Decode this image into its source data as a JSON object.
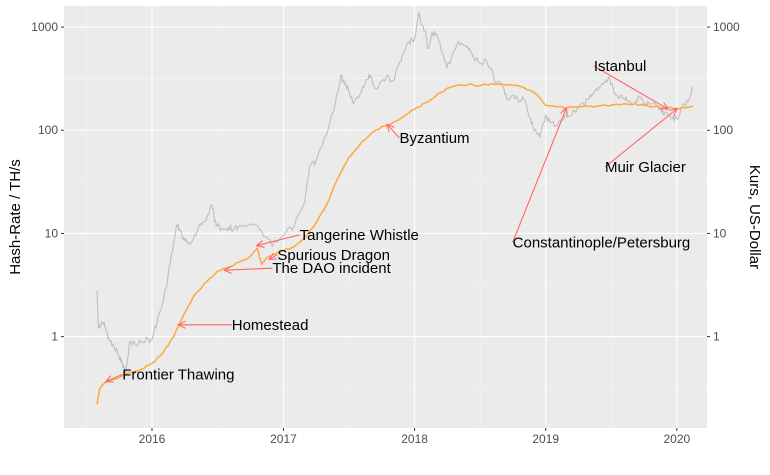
{
  "chart_data": {
    "type": "line",
    "title": "",
    "ylabel_left": "Hash-Rate / TH/s",
    "ylabel_right": "Kurs, US-Dollar",
    "xlabel": "",
    "y_scale": "log10",
    "ylim": [
      0.13,
      1600
    ],
    "xlim": [
      "2015-05-01",
      "2020-03-25"
    ],
    "grid": true,
    "legend": "none",
    "y_ticks": [
      {
        "value": 1,
        "label": "1"
      },
      {
        "value": 10,
        "label": "10"
      },
      {
        "value": 100,
        "label": "100"
      },
      {
        "value": 1000,
        "label": "1000"
      }
    ],
    "x_ticks": [
      {
        "value": "2016-01-01",
        "label": "2016"
      },
      {
        "value": "2017-01-01",
        "label": "2017"
      },
      {
        "value": "2018-01-01",
        "label": "2018"
      },
      {
        "value": "2019-01-01",
        "label": "2019"
      },
      {
        "value": "2020-01-01",
        "label": "2020"
      }
    ],
    "series": [
      {
        "color": "#ffa83d",
        "points": [
          [
            "2015-08-01",
            0.22
          ],
          [
            "2015-08-07",
            0.3
          ],
          [
            "2015-08-15",
            0.34
          ],
          [
            "2015-08-25",
            0.36
          ],
          [
            "2015-09-10",
            0.38
          ],
          [
            "2015-10-01",
            0.4
          ],
          [
            "2015-11-01",
            0.45
          ],
          [
            "2015-12-01",
            0.48
          ],
          [
            "2016-01-01",
            0.55
          ],
          [
            "2016-02-01",
            0.7
          ],
          [
            "2016-03-01",
            1.0
          ],
          [
            "2016-04-01",
            1.7
          ],
          [
            "2016-05-01",
            2.6
          ],
          [
            "2016-06-01",
            3.4
          ],
          [
            "2016-07-01",
            4.3
          ],
          [
            "2016-08-01",
            4.7
          ],
          [
            "2016-09-01",
            5.3
          ],
          [
            "2016-10-01",
            6.0
          ],
          [
            "2016-10-20",
            7.2
          ],
          [
            "2016-11-01",
            5.0
          ],
          [
            "2016-11-15",
            5.8
          ],
          [
            "2016-12-01",
            6.2
          ],
          [
            "2017-01-01",
            6.8
          ],
          [
            "2017-02-01",
            7.5
          ],
          [
            "2017-03-01",
            9.0
          ],
          [
            "2017-04-01",
            12.5
          ],
          [
            "2017-05-01",
            19
          ],
          [
            "2017-06-01",
            34
          ],
          [
            "2017-07-01",
            54
          ],
          [
            "2017-08-01",
            72
          ],
          [
            "2017-09-01",
            92
          ],
          [
            "2017-10-01",
            108
          ],
          [
            "2017-11-01",
            118
          ],
          [
            "2017-12-01",
            135
          ],
          [
            "2018-01-01",
            160
          ],
          [
            "2018-02-01",
            185
          ],
          [
            "2018-03-01",
            215
          ],
          [
            "2018-04-01",
            255
          ],
          [
            "2018-05-01",
            275
          ],
          [
            "2018-06-01",
            278
          ],
          [
            "2018-07-01",
            270
          ],
          [
            "2018-08-01",
            282
          ],
          [
            "2018-09-01",
            280
          ],
          [
            "2018-10-01",
            272
          ],
          [
            "2018-11-01",
            260
          ],
          [
            "2018-12-01",
            230
          ],
          [
            "2019-01-01",
            175
          ],
          [
            "2019-02-01",
            168
          ],
          [
            "2019-03-01",
            165
          ],
          [
            "2019-04-01",
            168
          ],
          [
            "2019-05-01",
            170
          ],
          [
            "2019-06-01",
            172
          ],
          [
            "2019-07-01",
            175
          ],
          [
            "2019-08-01",
            178
          ],
          [
            "2019-09-01",
            178
          ],
          [
            "2019-10-01",
            175
          ],
          [
            "2019-11-01",
            170
          ],
          [
            "2019-12-01",
            165
          ],
          [
            "2020-01-01",
            162
          ],
          [
            "2020-02-01",
            168
          ],
          [
            "2020-02-15",
            170
          ]
        ]
      },
      {
        "color": "#bebebe",
        "points": [
          [
            "2015-08-01",
            2.8
          ],
          [
            "2015-08-05",
            1.2
          ],
          [
            "2015-08-15",
            1.4
          ],
          [
            "2015-08-25",
            1.2
          ],
          [
            "2015-09-05",
            0.9
          ],
          [
            "2015-09-15",
            0.85
          ],
          [
            "2015-10-01",
            0.65
          ],
          [
            "2015-10-10",
            0.55
          ],
          [
            "2015-10-20",
            0.45
          ],
          [
            "2015-11-01",
            0.9
          ],
          [
            "2015-11-15",
            0.85
          ],
          [
            "2015-12-01",
            0.88
          ],
          [
            "2015-12-20",
            0.95
          ],
          [
            "2016-01-01",
            0.93
          ],
          [
            "2016-01-15",
            1.4
          ],
          [
            "2016-02-01",
            2.2
          ],
          [
            "2016-02-15",
            4.0
          ],
          [
            "2016-03-01",
            8.0
          ],
          [
            "2016-03-10",
            12
          ],
          [
            "2016-03-20",
            10.5
          ],
          [
            "2016-04-01",
            8.5
          ],
          [
            "2016-04-15",
            8.0
          ],
          [
            "2016-05-01",
            9.5
          ],
          [
            "2016-05-15",
            12.5
          ],
          [
            "2016-06-01",
            14
          ],
          [
            "2016-06-15",
            19
          ],
          [
            "2016-06-25",
            13
          ],
          [
            "2016-07-01",
            12
          ],
          [
            "2016-07-15",
            11
          ],
          [
            "2016-08-01",
            11.5
          ],
          [
            "2016-08-15",
            11
          ],
          [
            "2016-09-01",
            12
          ],
          [
            "2016-10-01",
            12.3
          ],
          [
            "2016-11-01",
            10.5
          ],
          [
            "2016-12-01",
            7.5
          ],
          [
            "2017-01-01",
            9.5
          ],
          [
            "2017-02-01",
            12
          ],
          [
            "2017-03-01",
            20
          ],
          [
            "2017-03-15",
            45
          ],
          [
            "2017-04-01",
            50
          ],
          [
            "2017-05-01",
            90
          ],
          [
            "2017-05-25",
            180
          ],
          [
            "2017-06-10",
            340
          ],
          [
            "2017-06-20",
            280
          ],
          [
            "2017-07-01",
            250
          ],
          [
            "2017-07-15",
            180
          ],
          [
            "2017-08-01",
            220
          ],
          [
            "2017-08-20",
            310
          ],
          [
            "2017-09-01",
            340
          ],
          [
            "2017-09-15",
            250
          ],
          [
            "2017-10-01",
            300
          ],
          [
            "2017-10-15",
            330
          ],
          [
            "2017-11-01",
            300
          ],
          [
            "2017-11-25",
            470
          ],
          [
            "2017-12-10",
            680
          ],
          [
            "2017-12-25",
            760
          ],
          [
            "2018-01-01",
            780
          ],
          [
            "2018-01-13",
            1380
          ],
          [
            "2018-01-20",
            1050
          ],
          [
            "2018-02-01",
            900
          ],
          [
            "2018-02-06",
            620
          ],
          [
            "2018-02-20",
            880
          ],
          [
            "2018-03-01",
            860
          ],
          [
            "2018-03-15",
            620
          ],
          [
            "2018-04-01",
            400
          ],
          [
            "2018-04-15",
            520
          ],
          [
            "2018-05-01",
            700
          ],
          [
            "2018-05-15",
            680
          ],
          [
            "2018-06-01",
            600
          ],
          [
            "2018-06-15",
            500
          ],
          [
            "2018-07-01",
            450
          ],
          [
            "2018-07-20",
            470
          ],
          [
            "2018-08-01",
            400
          ],
          [
            "2018-08-15",
            290
          ],
          [
            "2018-09-01",
            280
          ],
          [
            "2018-09-15",
            200
          ],
          [
            "2018-10-01",
            220
          ],
          [
            "2018-10-15",
            200
          ],
          [
            "2018-11-01",
            200
          ],
          [
            "2018-11-20",
            130
          ],
          [
            "2018-12-01",
            100
          ],
          [
            "2018-12-15",
            85
          ],
          [
            "2019-01-01",
            140
          ],
          [
            "2019-01-15",
            120
          ],
          [
            "2019-02-01",
            110
          ],
          [
            "2019-03-01",
            135
          ],
          [
            "2019-04-01",
            165
          ],
          [
            "2019-05-01",
            200
          ],
          [
            "2019-05-20",
            250
          ],
          [
            "2019-06-01",
            260
          ],
          [
            "2019-06-15",
            290
          ],
          [
            "2019-06-25",
            320
          ],
          [
            "2019-07-05",
            280
          ],
          [
            "2019-07-15",
            220
          ],
          [
            "2019-08-01",
            215
          ],
          [
            "2019-08-15",
            195
          ],
          [
            "2019-09-01",
            178
          ],
          [
            "2019-09-20",
            210
          ],
          [
            "2019-10-01",
            180
          ],
          [
            "2019-10-15",
            185
          ],
          [
            "2019-11-01",
            185
          ],
          [
            "2019-11-20",
            150
          ],
          [
            "2019-12-01",
            150
          ],
          [
            "2019-12-20",
            130
          ],
          [
            "2020-01-01",
            130
          ],
          [
            "2020-01-15",
            165
          ],
          [
            "2020-02-01",
            190
          ],
          [
            "2020-02-15",
            265
          ]
        ]
      }
    ],
    "annotations": [
      {
        "label": "Frontier Thawing",
        "text_at": [
          "2015-10-10",
          0.43
        ],
        "point": [
          "2015-08-25",
          0.365
        ]
      },
      {
        "label": "Homestead",
        "text_at": [
          "2016-08-10",
          1.3
        ],
        "point": [
          "2016-03-14",
          1.3
        ]
      },
      {
        "label": "The DAO incident",
        "text_at": [
          "2016-12-01",
          4.6
        ],
        "point": [
          "2016-07-20",
          4.4
        ]
      },
      {
        "label": "Spurious Dragon",
        "text_at": [
          "2016-12-15",
          6.2
        ],
        "point": [
          "2016-11-22",
          5.6
        ]
      },
      {
        "label": "Tangerine Whistle",
        "text_at": [
          "2017-02-15",
          9.7
        ],
        "point": [
          "2016-10-18",
          7.6
        ]
      },
      {
        "label": "Byzantium",
        "text_at": [
          "2017-11-20",
          84
        ],
        "point": [
          "2017-10-16",
          114
        ]
      },
      {
        "label": "Constantinople/Petersburg",
        "text_at": [
          "2018-10-01",
          8.2
        ],
        "point": [
          "2019-02-28",
          165
        ]
      },
      {
        "label": "Istanbul",
        "text_at": [
          "2019-05-15",
          420
        ],
        "point": [
          "2019-12-08",
          160
        ]
      },
      {
        "label": "Muir Glacier",
        "text_at": [
          "2019-06-15",
          44
        ],
        "point": [
          "2020-01-02",
          162
        ]
      }
    ]
  }
}
